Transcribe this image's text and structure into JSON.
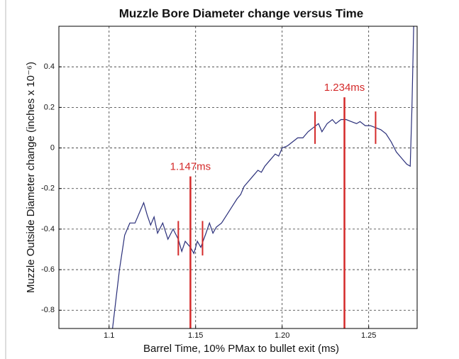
{
  "chart_data": {
    "type": "line",
    "title": "Muzzle Bore Diameter change versus Time",
    "x_label": "Barrel Time, 10% PMax to bullet exit (ms)",
    "y_label": "Muzzle Outside Diameter change (inches x 10⁻⁶)",
    "xlim": [
      1.071,
      1.278
    ],
    "ylim": [
      -0.89,
      0.6
    ],
    "xticks": [
      1.1,
      1.15,
      {
        "value": 1.2,
        "label": "1.20"
      },
      1.25
    ],
    "yticks": [
      0.4,
      0.2,
      0,
      -0.2,
      -0.4,
      -0.6,
      -0.8
    ],
    "grid": true,
    "series": [
      {
        "color": "#2a2f7a",
        "x": [
          1.102,
          1.106,
          1.109,
          1.112,
          1.115,
          1.118,
          1.12,
          1.122,
          1.124,
          1.126,
          1.128,
          1.131,
          1.134,
          1.137,
          1.14,
          1.142,
          1.144,
          1.147,
          1.149,
          1.151,
          1.153,
          1.156,
          1.158,
          1.16,
          1.162,
          1.165,
          1.168,
          1.171,
          1.174,
          1.176,
          1.178,
          1.18,
          1.183,
          1.186,
          1.188,
          1.19,
          1.193,
          1.196,
          1.198,
          1.2,
          1.203,
          1.206,
          1.209,
          1.212,
          1.215,
          1.218,
          1.221,
          1.223,
          1.226,
          1.229,
          1.231,
          1.234,
          1.237,
          1.24,
          1.243,
          1.245,
          1.248,
          1.251,
          1.254,
          1.257,
          1.26,
          1.263,
          1.266,
          1.269,
          1.272,
          1.274,
          1.275,
          1.276
        ],
        "values": [
          -0.89,
          -0.6,
          -0.43,
          -0.37,
          -0.37,
          -0.31,
          -0.27,
          -0.33,
          -0.38,
          -0.34,
          -0.42,
          -0.37,
          -0.45,
          -0.4,
          -0.45,
          -0.51,
          -0.46,
          -0.49,
          -0.52,
          -0.46,
          -0.49,
          -0.42,
          -0.37,
          -0.42,
          -0.39,
          -0.37,
          -0.33,
          -0.29,
          -0.25,
          -0.23,
          -0.19,
          -0.17,
          -0.14,
          -0.11,
          -0.12,
          -0.09,
          -0.06,
          -0.03,
          -0.04,
          0.0,
          0.01,
          0.03,
          0.05,
          0.05,
          0.08,
          0.1,
          0.12,
          0.08,
          0.12,
          0.14,
          0.12,
          0.14,
          0.14,
          0.13,
          0.12,
          0.13,
          0.11,
          0.11,
          0.1,
          0.09,
          0.07,
          0.03,
          -0.02,
          -0.05,
          -0.08,
          -0.09,
          0.2,
          0.6
        ]
      }
    ],
    "annotation_color": "#d42a2a",
    "annotations": [
      {
        "text": "1.147ms",
        "x": 1.147,
        "ymin": -0.89,
        "ymax": -0.14
      },
      {
        "text": "1.234ms",
        "x": 1.236,
        "ymin": -0.89,
        "ymax": 0.25
      }
    ],
    "brackets": [
      {
        "x": 1.14,
        "ymin": -0.53,
        "ymax": -0.36
      },
      {
        "x": 1.154,
        "ymin": -0.53,
        "ymax": -0.36
      },
      {
        "x": 1.219,
        "ymin": 0.02,
        "ymax": 0.18
      },
      {
        "x": 1.254,
        "ymin": 0.02,
        "ymax": 0.18
      }
    ]
  }
}
